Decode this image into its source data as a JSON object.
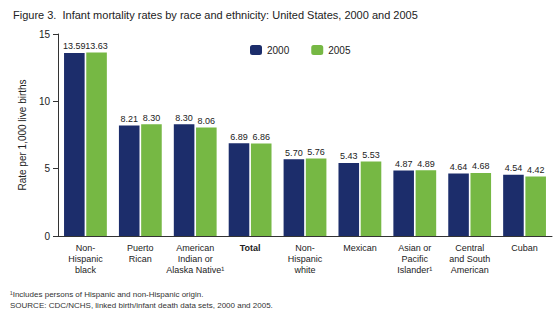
{
  "chart_data": {
    "type": "bar",
    "title": "Figure 3.  Infant mortality rates by race and ethnicity: United States, 2000 and 2005",
    "y_label": "Rate per 1,000 live births",
    "categories": [
      "Non-\nHispanic\nblack",
      "Puerto\nRican",
      "American\nIndian or\nAlaska Native¹",
      "Total",
      "Non-\nHispanic\nwhite",
      "Mexican",
      "Asian or\nPacific\nIslander¹",
      "Central\nand South\nAmerican",
      "Cuban"
    ],
    "series": [
      {
        "name": "2000",
        "color": "#1c2d6b",
        "values": [
          13.59,
          8.21,
          8.3,
          6.89,
          5.7,
          5.43,
          4.87,
          4.64,
          4.54
        ],
        "value_labels": [
          "13.59",
          "8.21",
          "8.30",
          "6.89",
          "5.70",
          "5.43",
          "4.87",
          "4.64",
          "4.54"
        ]
      },
      {
        "name": "2005",
        "color": "#76b844",
        "values": [
          13.63,
          8.3,
          8.06,
          6.86,
          5.76,
          5.53,
          4.89,
          4.68,
          4.42
        ],
        "value_labels": [
          "13.63",
          "8.30",
          "8.06",
          "6.86",
          "5.76",
          "5.53",
          "4.89",
          "4.68",
          "4.42"
        ]
      }
    ],
    "ylim": [
      0,
      15
    ],
    "yticks": [
      0,
      5,
      10,
      15
    ],
    "grid": false,
    "legend": "top",
    "data_labels": true,
    "annotations": [
      "¹Includes persons of Hispanic and non-Hispanic origin.",
      "SOURCE: CDC/NCHS, linked birth/infant death data sets, 2000 and 2005."
    ]
  }
}
